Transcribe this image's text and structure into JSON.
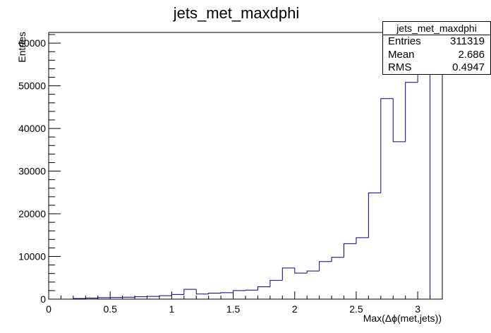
{
  "chart_data": {
    "type": "bar",
    "title": "jets_met_maxdphi",
    "xlabel": "Max(Δϕ(met,jets))",
    "ylabel": "Entries",
    "xlim": [
      0,
      3.2
    ],
    "ylim": [
      0,
      62500
    ],
    "x_ticks": [
      "0",
      "0.5",
      "1",
      "1.5",
      "2",
      "2.5",
      "3"
    ],
    "y_ticks": [
      "0",
      "10000",
      "20000",
      "30000",
      "40000",
      "50000",
      "60000"
    ],
    "bin_width": 0.1,
    "bin_edges_start": 0.2,
    "values": [
      150,
      250,
      350,
      400,
      450,
      550,
      650,
      800,
      1100,
      2300,
      1200,
      1400,
      1500,
      2000,
      2100,
      2900,
      4400,
      7300,
      6100,
      6600,
      8800,
      9800,
      13000,
      14400,
      24900,
      47000,
      36900,
      50800,
      58000
    ],
    "line_color": "#00008b",
    "grid": false,
    "stats": {
      "title": "jets_met_maxdphi",
      "rows": [
        {
          "label": "Entries",
          "value": "311319"
        },
        {
          "label": "Mean",
          "value": "2.686"
        },
        {
          "label": "RMS",
          "value": "0.4947"
        }
      ]
    }
  }
}
